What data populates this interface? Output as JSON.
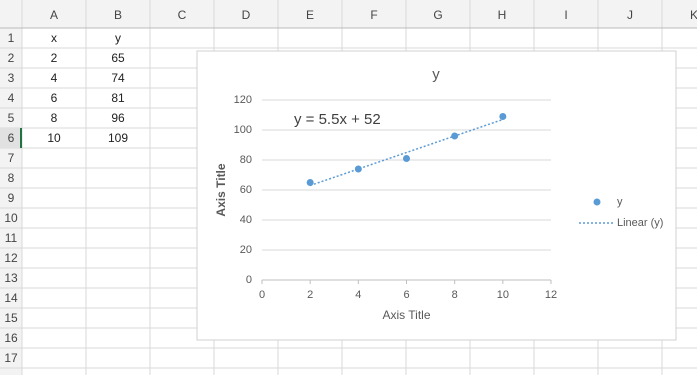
{
  "sheet": {
    "columns": [
      "A",
      "B",
      "C",
      "D",
      "E",
      "F",
      "G",
      "H",
      "I",
      "J",
      "K"
    ],
    "rows": [
      1,
      2,
      3,
      4,
      5,
      6,
      7,
      8,
      9,
      10,
      11,
      12,
      13,
      14,
      15,
      16,
      17
    ],
    "cells": [
      [
        "x",
        "y"
      ],
      [
        2,
        65
      ],
      [
        4,
        74
      ],
      [
        6,
        81
      ],
      [
        8,
        96
      ],
      [
        10,
        109
      ]
    ]
  },
  "chart_data": {
    "type": "scatter",
    "title": "y",
    "x_label": "Axis Title",
    "y_label": "Axis Title",
    "series": [
      {
        "name": "y",
        "color": "#5b9bd5",
        "x": [
          2,
          4,
          6,
          8,
          10
        ],
        "values": [
          65,
          74,
          81,
          96,
          109
        ]
      }
    ],
    "trendline": {
      "name": "Linear (y)",
      "equation": "y = 5.5x + 52",
      "slope": 5.5,
      "intercept": 52
    },
    "xlim": [
      0,
      12
    ],
    "xticks": [
      0,
      2,
      4,
      6,
      8,
      10,
      12
    ],
    "ylim": [
      0,
      120
    ],
    "yticks": [
      0,
      20,
      40,
      60,
      80,
      100,
      120
    ],
    "grid": true,
    "legend": "right"
  }
}
